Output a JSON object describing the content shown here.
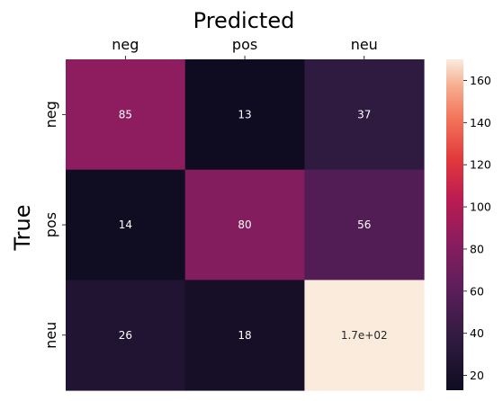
{
  "chart_data": {
    "type": "heatmap",
    "xlabel": "Predicted",
    "ylabel": "True",
    "x_categories": [
      "neg",
      "pos",
      "neu"
    ],
    "y_categories": [
      "neg",
      "pos",
      "neu"
    ],
    "values": [
      [
        85,
        13,
        37
      ],
      [
        14,
        80,
        56
      ],
      [
        26,
        18,
        170
      ]
    ],
    "annotations": [
      [
        "85",
        "13",
        "37"
      ],
      [
        "14",
        "80",
        "56"
      ],
      [
        "26",
        "18",
        "1.7e+02"
      ]
    ],
    "colorbar": {
      "min": 13,
      "max": 170,
      "ticks": [
        20,
        40,
        60,
        80,
        100,
        120,
        140,
        160
      ],
      "colormap": "rocket"
    },
    "x_axis_position": "top"
  }
}
